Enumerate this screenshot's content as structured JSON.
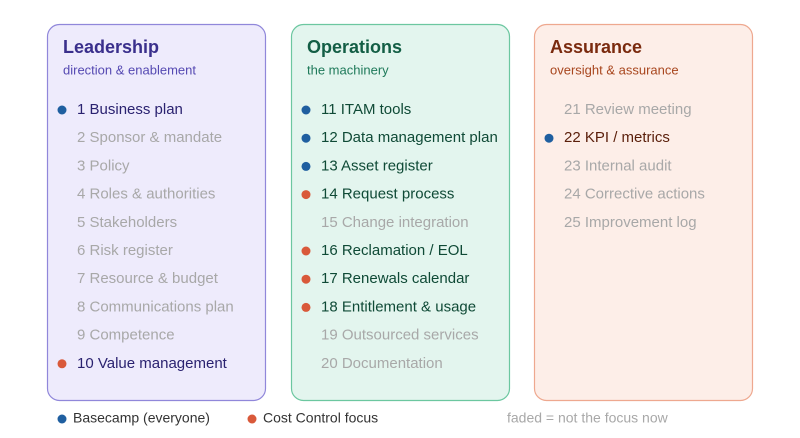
{
  "columns": [
    {
      "title": "Leadership",
      "subtitle": "direction & enablement",
      "colors": {
        "background": "#eeebfc",
        "border": "#9087da",
        "title": "#3a2f8c",
        "subtitle": "#5549b2",
        "text": "#2a2270"
      },
      "items": [
        {
          "label": "1 Business plan",
          "dot": "#1f5fa0"
        },
        {
          "label": "2 Sponsor & mandate",
          "dot": null
        },
        {
          "label": "3 Policy",
          "dot": null
        },
        {
          "label": "4 Roles & authorities",
          "dot": null
        },
        {
          "label": "5 Stakeholders",
          "dot": null
        },
        {
          "label": "6 Risk register",
          "dot": null
        },
        {
          "label": "7 Resource & budget",
          "dot": null
        },
        {
          "label": "8 Communications plan",
          "dot": null
        },
        {
          "label": "9 Competence",
          "dot": null
        },
        {
          "label": "10 Value management",
          "dot": "#d9593a"
        }
      ]
    },
    {
      "title": "Operations",
      "subtitle": "the machinery",
      "colors": {
        "background": "#e3f5ee",
        "border": "#6cc7a0",
        "title": "#135e45",
        "subtitle": "#1f7a5a",
        "text": "#0f4a36"
      },
      "items": [
        {
          "label": "11 ITAM tools",
          "dot": "#1f5fa0"
        },
        {
          "label": "12 Data management plan",
          "dot": "#1f5fa0"
        },
        {
          "label": "13 Asset register",
          "dot": "#1f5fa0"
        },
        {
          "label": "14 Request process",
          "dot": "#d9593a"
        },
        {
          "label": "15 Change integration",
          "dot": null
        },
        {
          "label": "16 Reclamation / EOL",
          "dot": "#d9593a"
        },
        {
          "label": "17 Renewals calendar",
          "dot": "#d9593a"
        },
        {
          "label": "18 Entitlement & usage",
          "dot": "#d9593a"
        },
        {
          "label": "19 Outsourced services",
          "dot": null
        },
        {
          "label": "20 Documentation",
          "dot": null
        }
      ]
    },
    {
      "title": "Assurance",
      "subtitle": "oversight & assurance",
      "colors": {
        "background": "#fdeee8",
        "border": "#eea88f",
        "title": "#7a2a0e",
        "subtitle": "#a8461e",
        "text": "#5a1e0a"
      },
      "items": [
        {
          "label": "21 Review meeting",
          "dot": null
        },
        {
          "label": "22 KPI / metrics",
          "dot": "#1f5fa0"
        },
        {
          "label": "23 Internal audit",
          "dot": null
        },
        {
          "label": "24 Corrective actions",
          "dot": null
        },
        {
          "label": "25 Improvement log",
          "dot": null
        }
      ]
    }
  ],
  "faded_color": "#a8a8a8",
  "legend": {
    "items": [
      {
        "label": "Basecamp (everyone)",
        "dot": "#1f5fa0"
      },
      {
        "label": "Cost Control focus",
        "dot": "#d9593a"
      }
    ],
    "note": "faded = not the focus now"
  }
}
